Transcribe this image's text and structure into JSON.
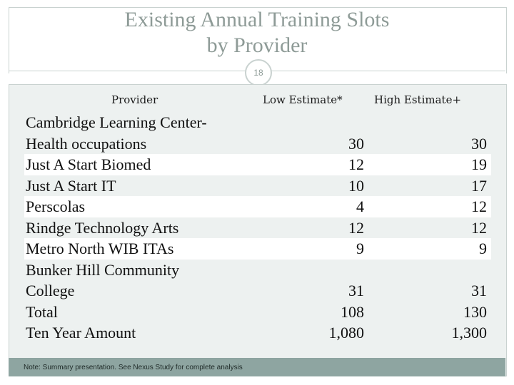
{
  "slide": {
    "title_line1": "Existing Annual Training Slots",
    "title_line2": "by Provider",
    "number": "18"
  },
  "table": {
    "headers": {
      "provider": "Provider",
      "low": "Low Estimate*",
      "high": "High Estimate+"
    },
    "rows": [
      {
        "name_line1": "Cambridge Learning Center-",
        "name_line2": "Health occupations",
        "low": "30",
        "high": "30"
      },
      {
        "name_line1": "Just A Start Biomed",
        "low": "12",
        "high": "19"
      },
      {
        "name_line1": "Just A Start IT",
        "low": "10",
        "high": "17"
      },
      {
        "name_line1": "Perscolas",
        "low": "4",
        "high": "12"
      },
      {
        "name_line1": "Rindge Technology Arts",
        "low": "12",
        "high": "12"
      },
      {
        "name_line1": "Metro North WIB ITAs",
        "low": "9",
        "high": "9"
      },
      {
        "name_line1": "Bunker Hill Community",
        "name_line2": "College",
        "low": "31",
        "high": "31"
      },
      {
        "name_line1": "Total",
        "low": "108",
        "high": "130"
      },
      {
        "name_line1": "Ten Year Amount",
        "low": "1,080",
        "high": "1,300"
      }
    ]
  },
  "note": "Note: Summary presentation. See Nexus Study for complete analysis"
}
